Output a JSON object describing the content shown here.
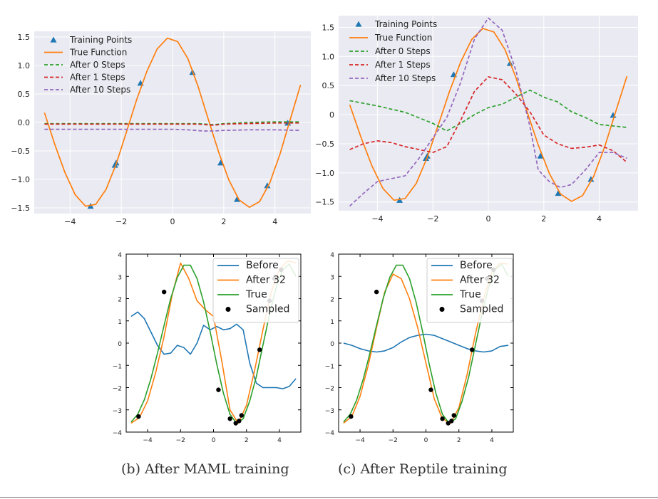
{
  "captions": {
    "b": "(b) After MAML training",
    "c": "(c) After Reptile training"
  },
  "colors": {
    "panel_bg": "#eaeaf2",
    "grid": "#ffffff",
    "blue": "#1f77b4",
    "orange": "#ff7f0e",
    "green": "#2ca02c",
    "red": "#d62728",
    "purple": "#9467bd",
    "black": "#000000"
  },
  "chart_data": [
    {
      "type": "line",
      "style": "seaborn-darkgrid",
      "xlim": [
        -5.4,
        5.4
      ],
      "ylim": [
        -1.6,
        1.6
      ],
      "xticks": [
        -4,
        -2,
        0,
        2,
        4
      ],
      "yticks": [
        -1.5,
        -1.0,
        -0.5,
        0.0,
        0.5,
        1.0,
        1.5
      ],
      "xtick_labels": [
        "−4",
        "−2",
        "0",
        "2",
        "4"
      ],
      "ytick_labels": [
        "−1.5",
        "−1.0",
        "−0.5",
        "0.0",
        "0.5",
        "1.0",
        "1.5"
      ],
      "legend_loc": "upper-left",
      "series": [
        {
          "name": "Training Points",
          "kind": "marker-triangle",
          "color": "#1f77b4",
          "x": [
            -3.2,
            -2.25,
            -2.2,
            -1.25,
            0.78,
            1.88,
            2.52,
            3.7,
            4.5
          ],
          "y": [
            -1.47,
            -0.75,
            -0.71,
            0.69,
            0.88,
            -0.71,
            -1.35,
            -1.11,
            -0.01
          ]
        },
        {
          "name": "True Function",
          "kind": "line",
          "color": "#ff7f0e",
          "x": [
            -5.0,
            -4.6,
            -4.2,
            -3.8,
            -3.4,
            -3.0,
            -2.6,
            -2.2,
            -1.8,
            -1.4,
            -1.0,
            -0.6,
            -0.2,
            0.2,
            0.6,
            1.0,
            1.4,
            1.8,
            2.2,
            2.6,
            3.0,
            3.4,
            3.8,
            4.2,
            4.6,
            5.0
          ],
          "y": [
            0.17,
            -0.38,
            -0.88,
            -1.27,
            -1.47,
            -1.44,
            -1.18,
            -0.73,
            -0.17,
            0.4,
            0.9,
            1.29,
            1.48,
            1.42,
            1.12,
            0.63,
            0.05,
            -0.52,
            -1.01,
            -1.36,
            -1.49,
            -1.39,
            -1.06,
            -0.55,
            0.06,
            0.66
          ]
        },
        {
          "name": "After 0 Steps",
          "kind": "dashed",
          "color": "#2ca02c",
          "x": [
            -5.0,
            -4.0,
            -3.0,
            -2.0,
            -1.0,
            0.0,
            1.0,
            1.6,
            2.0,
            3.0,
            4.0,
            5.0
          ],
          "y": [
            -0.02,
            -0.02,
            -0.02,
            -0.02,
            -0.02,
            -0.02,
            -0.02,
            -0.04,
            -0.02,
            0.0,
            0.01,
            0.01
          ]
        },
        {
          "name": "After 1 Steps",
          "kind": "dashed",
          "color": "#d62728",
          "x": [
            -5.0,
            -4.0,
            -3.0,
            -2.0,
            -1.0,
            0.0,
            1.0,
            1.6,
            2.0,
            3.0,
            4.0,
            5.0
          ],
          "y": [
            -0.03,
            -0.03,
            -0.03,
            -0.03,
            -0.03,
            -0.03,
            -0.03,
            -0.05,
            -0.03,
            -0.02,
            -0.01,
            -0.01
          ]
        },
        {
          "name": "After 10 Steps",
          "kind": "dashed",
          "color": "#9467bd",
          "x": [
            -5.0,
            -4.0,
            -3.0,
            -2.0,
            -1.0,
            0.0,
            0.6,
            1.2,
            1.6,
            2.0,
            3.0,
            4.0,
            5.0
          ],
          "y": [
            -0.12,
            -0.12,
            -0.12,
            -0.12,
            -0.12,
            -0.12,
            -0.13,
            -0.15,
            -0.15,
            -0.14,
            -0.13,
            -0.13,
            -0.14
          ]
        }
      ]
    },
    {
      "type": "line",
      "style": "seaborn-darkgrid",
      "xlim": [
        -5.4,
        5.4
      ],
      "ylim": [
        -1.65,
        1.7
      ],
      "xticks": [
        -4,
        -2,
        0,
        2,
        4
      ],
      "yticks": [
        -1.5,
        -1.0,
        -0.5,
        0.0,
        0.5,
        1.0,
        1.5
      ],
      "xtick_labels": [
        "−4",
        "−2",
        "0",
        "2",
        "4"
      ],
      "ytick_labels": [
        "−1.5",
        "−1.0",
        "−0.5",
        "0",
        "0.5",
        "1.0",
        "1.5"
      ],
      "legend_loc": "upper-left",
      "series": [
        {
          "name": "Training Points",
          "kind": "marker-triangle",
          "color": "#1f77b4",
          "x": [
            -3.2,
            -2.25,
            -2.2,
            -1.25,
            0.78,
            1.88,
            2.52,
            3.7,
            4.5
          ],
          "y": [
            -1.47,
            -0.75,
            -0.71,
            0.69,
            0.88,
            -0.71,
            -1.35,
            -1.11,
            -0.01
          ]
        },
        {
          "name": "True Function",
          "kind": "line",
          "color": "#ff7f0e",
          "x": [
            -5.0,
            -4.6,
            -4.2,
            -3.8,
            -3.4,
            -3.0,
            -2.6,
            -2.2,
            -1.8,
            -1.4,
            -1.0,
            -0.6,
            -0.2,
            0.2,
            0.6,
            1.0,
            1.4,
            1.8,
            2.2,
            2.6,
            3.0,
            3.4,
            3.8,
            4.2,
            4.6,
            5.0
          ],
          "y": [
            0.17,
            -0.38,
            -0.88,
            -1.27,
            -1.47,
            -1.44,
            -1.18,
            -0.73,
            -0.17,
            0.4,
            0.9,
            1.29,
            1.48,
            1.42,
            1.12,
            0.63,
            0.05,
            -0.52,
            -1.01,
            -1.36,
            -1.49,
            -1.39,
            -1.06,
            -0.55,
            0.06,
            0.66
          ]
        },
        {
          "name": "After 0 Steps",
          "kind": "dashed",
          "color": "#2ca02c",
          "x": [
            -5.0,
            -4.0,
            -3.0,
            -2.0,
            -1.5,
            -1.0,
            -0.5,
            0.0,
            0.5,
            1.0,
            1.5,
            2.0,
            2.5,
            3.0,
            3.5,
            4.0,
            5.0
          ],
          "y": [
            0.24,
            0.15,
            0.04,
            -0.15,
            -0.28,
            -0.15,
            0.0,
            0.12,
            0.18,
            0.3,
            0.42,
            0.3,
            0.22,
            0.05,
            -0.05,
            -0.17,
            -0.22
          ]
        },
        {
          "name": "After 1 Steps",
          "kind": "dashed",
          "color": "#d62728",
          "x": [
            -5.0,
            -4.5,
            -4.0,
            -3.5,
            -3.0,
            -2.5,
            -2.0,
            -1.5,
            -1.0,
            -0.5,
            0.0,
            0.5,
            1.0,
            1.5,
            2.0,
            2.5,
            3.0,
            3.5,
            4.0,
            4.5,
            5.0
          ],
          "y": [
            -0.6,
            -0.5,
            -0.45,
            -0.48,
            -0.55,
            -0.6,
            -0.65,
            -0.55,
            -0.1,
            0.4,
            0.65,
            0.6,
            0.35,
            0.05,
            -0.35,
            -0.5,
            -0.58,
            -0.56,
            -0.52,
            -0.62,
            -0.82
          ]
        },
        {
          "name": "After 10 Steps",
          "kind": "dashed",
          "color": "#9467bd",
          "x": [
            -5.0,
            -4.5,
            -4.0,
            -3.5,
            -3.0,
            -2.5,
            -2.0,
            -1.5,
            -1.0,
            -0.5,
            0.0,
            0.5,
            1.0,
            1.5,
            1.8,
            2.2,
            2.6,
            3.0,
            3.5,
            4.0,
            4.5,
            5.0
          ],
          "y": [
            -1.57,
            -1.35,
            -1.15,
            -1.1,
            -1.05,
            -0.75,
            -0.4,
            -0.05,
            0.55,
            1.3,
            1.66,
            1.45,
            0.75,
            -0.2,
            -0.95,
            -1.15,
            -1.25,
            -1.2,
            -0.95,
            -0.65,
            -0.65,
            -0.75
          ]
        }
      ]
    },
    {
      "type": "line",
      "style": "classic",
      "xlim": [
        -5.3,
        5.3
      ],
      "ylim": [
        -4,
        4
      ],
      "xticks": [
        -4,
        -2,
        0,
        2,
        4
      ],
      "yticks": [
        -4,
        -3,
        -2,
        -1,
        0,
        1,
        2,
        3,
        4
      ],
      "xtick_labels": [
        "−4",
        "−2",
        "0",
        "2",
        "4"
      ],
      "ytick_labels": [
        "−4",
        "−3",
        "−2",
        "−1",
        "0",
        "1",
        "2",
        "3",
        "4"
      ],
      "legend_loc": "upper-right",
      "series": [
        {
          "name": "Before",
          "kind": "line",
          "color": "#1f77b4",
          "x": [
            -5.0,
            -4.6,
            -4.2,
            -3.8,
            -3.4,
            -3.0,
            -2.6,
            -2.2,
            -1.8,
            -1.4,
            -1.0,
            -0.6,
            -0.2,
            0.2,
            0.6,
            1.0,
            1.4,
            1.8,
            2.2,
            2.6,
            3.0,
            3.4,
            3.8,
            4.2,
            4.6,
            5.0
          ],
          "y": [
            1.2,
            1.4,
            1.1,
            0.5,
            -0.1,
            -0.5,
            -0.45,
            -0.1,
            -0.2,
            -0.5,
            0.0,
            0.8,
            0.6,
            0.75,
            0.6,
            0.65,
            0.85,
            0.6,
            -0.9,
            -1.8,
            -2.0,
            -2.0,
            -2.0,
            -2.05,
            -1.95,
            -1.6
          ]
        },
        {
          "name": "After 32",
          "kind": "line",
          "color": "#ff7f0e",
          "x": [
            -5.0,
            -4.5,
            -4.0,
            -3.5,
            -3.0,
            -2.5,
            -2.0,
            -1.5,
            -1.0,
            -0.5,
            0.0,
            0.5,
            1.0,
            1.5,
            2.0,
            2.5,
            3.0,
            3.5,
            4.0,
            4.5,
            5.0
          ],
          "y": [
            -3.6,
            -3.35,
            -2.6,
            -1.3,
            0.3,
            2.2,
            3.6,
            2.9,
            1.9,
            1.5,
            1.2,
            -0.8,
            -3.0,
            -3.6,
            -2.8,
            -1.2,
            0.6,
            2.3,
            3.3,
            3.7,
            3.6
          ]
        },
        {
          "name": "True",
          "kind": "line",
          "color": "#2ca02c",
          "x": [
            -5.0,
            -4.6,
            -4.2,
            -3.8,
            -3.4,
            -3.0,
            -2.6,
            -2.2,
            -1.8,
            -1.4,
            -1.0,
            -0.6,
            -0.2,
            0.2,
            0.6,
            1.0,
            1.4,
            1.8,
            2.2,
            2.6,
            3.0,
            3.4,
            3.8,
            4.2,
            4.6,
            5.0
          ],
          "y": [
            -3.55,
            -3.2,
            -2.55,
            -1.6,
            -0.45,
            0.8,
            2.0,
            2.95,
            3.5,
            3.5,
            2.9,
            1.85,
            0.5,
            -0.95,
            -2.25,
            -3.2,
            -3.6,
            -3.4,
            -2.6,
            -1.5,
            -0.1,
            1.3,
            2.5,
            3.3,
            3.55,
            3.0
          ]
        },
        {
          "name": "Sampled",
          "kind": "marker-dot",
          "color": "#000000",
          "x": [
            -4.55,
            -3.0,
            0.3,
            1.0,
            1.35,
            1.55,
            1.7,
            2.8,
            3.4,
            3.7,
            4.1
          ],
          "y": [
            -3.3,
            2.3,
            -2.1,
            -3.4,
            -3.6,
            -3.5,
            -3.25,
            -0.3,
            1.9,
            2.9,
            3.3
          ]
        }
      ]
    },
    {
      "type": "line",
      "style": "classic",
      "xlim": [
        -5.3,
        5.3
      ],
      "ylim": [
        -4,
        4
      ],
      "xticks": [
        -4,
        -2,
        0,
        2,
        4
      ],
      "yticks": [
        -4,
        -3,
        -2,
        -1,
        0,
        1,
        2,
        3,
        4
      ],
      "xtick_labels": [
        "−4",
        "−2",
        "0",
        "2",
        "4"
      ],
      "ytick_labels": [
        "−4",
        "−3",
        "−2",
        "−1",
        "0",
        "1",
        "2",
        "3",
        "4"
      ],
      "legend_loc": "upper-right",
      "series": [
        {
          "name": "Before",
          "kind": "line",
          "color": "#1f77b4",
          "x": [
            -5.0,
            -4.5,
            -4.0,
            -3.5,
            -3.0,
            -2.5,
            -2.0,
            -1.5,
            -1.0,
            -0.5,
            0.0,
            0.5,
            1.0,
            1.5,
            2.0,
            2.5,
            3.0,
            3.5,
            4.0,
            4.5,
            5.0
          ],
          "y": [
            0.0,
            -0.1,
            -0.25,
            -0.35,
            -0.4,
            -0.35,
            -0.2,
            0.05,
            0.25,
            0.35,
            0.4,
            0.35,
            0.2,
            0.05,
            -0.1,
            -0.25,
            -0.35,
            -0.4,
            -0.35,
            -0.15,
            -0.1
          ]
        },
        {
          "name": "After 32",
          "kind": "line",
          "color": "#ff7f0e",
          "x": [
            -5.0,
            -4.5,
            -4.0,
            -3.5,
            -3.0,
            -2.5,
            -2.0,
            -1.5,
            -1.0,
            -0.5,
            0.0,
            0.5,
            1.0,
            1.5,
            2.0,
            2.5,
            3.0,
            3.5,
            4.0,
            4.5,
            5.0
          ],
          "y": [
            -3.6,
            -3.3,
            -2.4,
            -1.0,
            0.7,
            2.3,
            3.1,
            2.9,
            2.0,
            0.7,
            -0.9,
            -2.5,
            -3.4,
            -3.6,
            -2.9,
            -1.4,
            0.4,
            2.0,
            3.2,
            3.6,
            3.55
          ]
        },
        {
          "name": "True",
          "kind": "line",
          "color": "#2ca02c",
          "x": [
            -5.0,
            -4.6,
            -4.2,
            -3.8,
            -3.4,
            -3.0,
            -2.6,
            -2.2,
            -1.8,
            -1.4,
            -1.0,
            -0.6,
            -0.2,
            0.2,
            0.6,
            1.0,
            1.4,
            1.8,
            2.2,
            2.6,
            3.0,
            3.4,
            3.8,
            4.2,
            4.6,
            5.0
          ],
          "y": [
            -3.55,
            -3.2,
            -2.55,
            -1.6,
            -0.45,
            0.8,
            2.0,
            2.95,
            3.5,
            3.5,
            2.9,
            1.85,
            0.5,
            -0.95,
            -2.25,
            -3.2,
            -3.6,
            -3.4,
            -2.6,
            -1.5,
            -0.1,
            1.3,
            2.5,
            3.3,
            3.55,
            3.0
          ]
        },
        {
          "name": "Sampled",
          "kind": "marker-dot",
          "color": "#000000",
          "x": [
            -4.55,
            -3.0,
            0.3,
            1.0,
            1.35,
            1.55,
            1.7,
            2.8,
            3.4,
            3.7,
            4.1
          ],
          "y": [
            -3.3,
            2.3,
            -2.1,
            -3.4,
            -3.6,
            -3.5,
            -3.25,
            -0.3,
            1.9,
            2.9,
            3.3
          ]
        }
      ]
    }
  ]
}
